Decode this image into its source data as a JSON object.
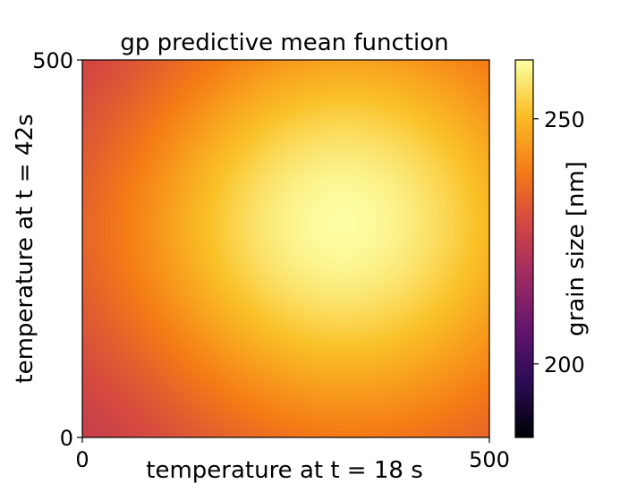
{
  "chart_data": {
    "type": "heatmap",
    "title": "gp predictive mean function",
    "xlabel": "temperature at t = 18 s",
    "ylabel": "temperature at t = 42s",
    "xlim": [
      0,
      500
    ],
    "ylim": [
      0,
      500
    ],
    "x_ticks": [
      {
        "value": 0,
        "label": "0"
      },
      {
        "value": 500,
        "label": "500"
      }
    ],
    "y_ticks": [
      {
        "value": 0,
        "label": "0"
      },
      {
        "value": 500,
        "label": "500"
      }
    ],
    "colormap": "inferno",
    "colorbar": {
      "label": "grain size [nm]",
      "range": [
        185,
        262
      ],
      "ticks": [
        {
          "value": 200,
          "label": "200"
        },
        {
          "value": 250,
          "label": "250"
        }
      ]
    },
    "field_description": {
      "peak": {
        "x": 315,
        "y": 285,
        "value": 262
      },
      "falloff_scale": 300,
      "low_corners": [
        {
          "x": 0,
          "y": 500,
          "value": 228
        },
        {
          "x": 0,
          "y": 0,
          "value": 232
        }
      ]
    }
  }
}
